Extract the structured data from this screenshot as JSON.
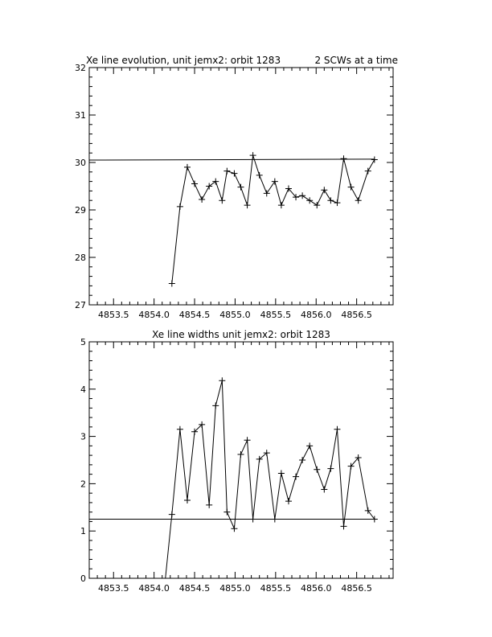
{
  "chart_data": [
    {
      "type": "line",
      "title": "Xe line evolution, unit jemx2: orbit 1283",
      "subtitle": "2 SCWs at a time",
      "xlim": [
        4853.2,
        4856.95
      ],
      "ylim": [
        27,
        32
      ],
      "x_ticks": [
        "4853.5",
        "4854.0",
        "4854.5",
        "4855.0",
        "4855.5",
        "4856.0",
        "4856.5"
      ],
      "y_ticks": [
        "27",
        "28",
        "29",
        "30",
        "31",
        "32"
      ],
      "grid": false,
      "series": [
        {
          "marker": "plus",
          "x": [
            4854.22,
            4854.32,
            4854.41,
            4854.5,
            4854.59,
            4854.68,
            4854.76,
            4854.84,
            4854.9,
            4854.99,
            4855.07,
            4855.15,
            4855.22,
            4855.3,
            4855.39,
            4855.49,
            4855.57,
            4855.66,
            4855.75,
            4855.83,
            4855.92,
            4856.01,
            4856.1,
            4856.18,
            4856.26,
            4856.34,
            4856.43,
            4856.52,
            4856.64,
            4856.72
          ],
          "y": [
            27.45,
            29.07,
            29.9,
            29.55,
            29.22,
            29.5,
            29.6,
            29.2,
            29.82,
            29.77,
            29.48,
            29.1,
            30.15,
            29.73,
            29.35,
            29.6,
            29.1,
            29.45,
            29.27,
            29.3,
            29.2,
            29.1,
            29.42,
            29.2,
            29.15,
            30.08,
            29.48,
            29.2,
            29.82,
            30.06
          ]
        }
      ],
      "reference_line": {
        "x": [
          4853.2,
          4856.72
        ],
        "y": [
          30.05,
          30.07
        ]
      }
    },
    {
      "type": "line",
      "title": "Xe line widths unit jemx2: orbit 1283",
      "xlim": [
        4853.2,
        4856.95
      ],
      "ylim": [
        0,
        5
      ],
      "x_ticks": [
        "4853.5",
        "4854.0",
        "4854.5",
        "4855.0",
        "4855.5",
        "4856.0",
        "4856.5"
      ],
      "y_ticks": [
        "0",
        "1",
        "2",
        "3",
        "4",
        "5"
      ],
      "grid": false,
      "series": [
        {
          "marker": "plus",
          "x": [
            4854.22,
            4854.32,
            4854.41,
            4854.5,
            4854.59,
            4854.68,
            4854.76,
            4854.84,
            4854.9,
            4854.99,
            4855.07,
            4855.15,
            4855.22,
            4855.3,
            4855.39,
            4855.49,
            4855.57,
            4855.66,
            4855.75,
            4855.83,
            4855.92,
            4856.01,
            4856.1,
            4856.18,
            4856.26,
            4856.34,
            4856.43,
            4856.52,
            4856.64,
            4856.72
          ],
          "y": [
            1.35,
            3.15,
            1.65,
            3.1,
            3.25,
            1.55,
            3.65,
            4.18,
            1.4,
            1.05,
            2.62,
            2.92,
            1.25,
            2.52,
            2.65,
            1.25,
            2.22,
            1.63,
            2.15,
            2.5,
            2.8,
            2.3,
            1.88,
            2.32,
            3.15,
            1.1,
            2.37,
            2.55,
            1.43,
            1.25
          ]
        }
      ],
      "lead_in": {
        "x": [
          4854.14,
          4854.22
        ],
        "y": [
          0,
          1.35
        ]
      },
      "reference_line": {
        "x": [
          4853.2,
          4856.72
        ],
        "y": [
          1.25,
          1.25
        ]
      }
    }
  ]
}
